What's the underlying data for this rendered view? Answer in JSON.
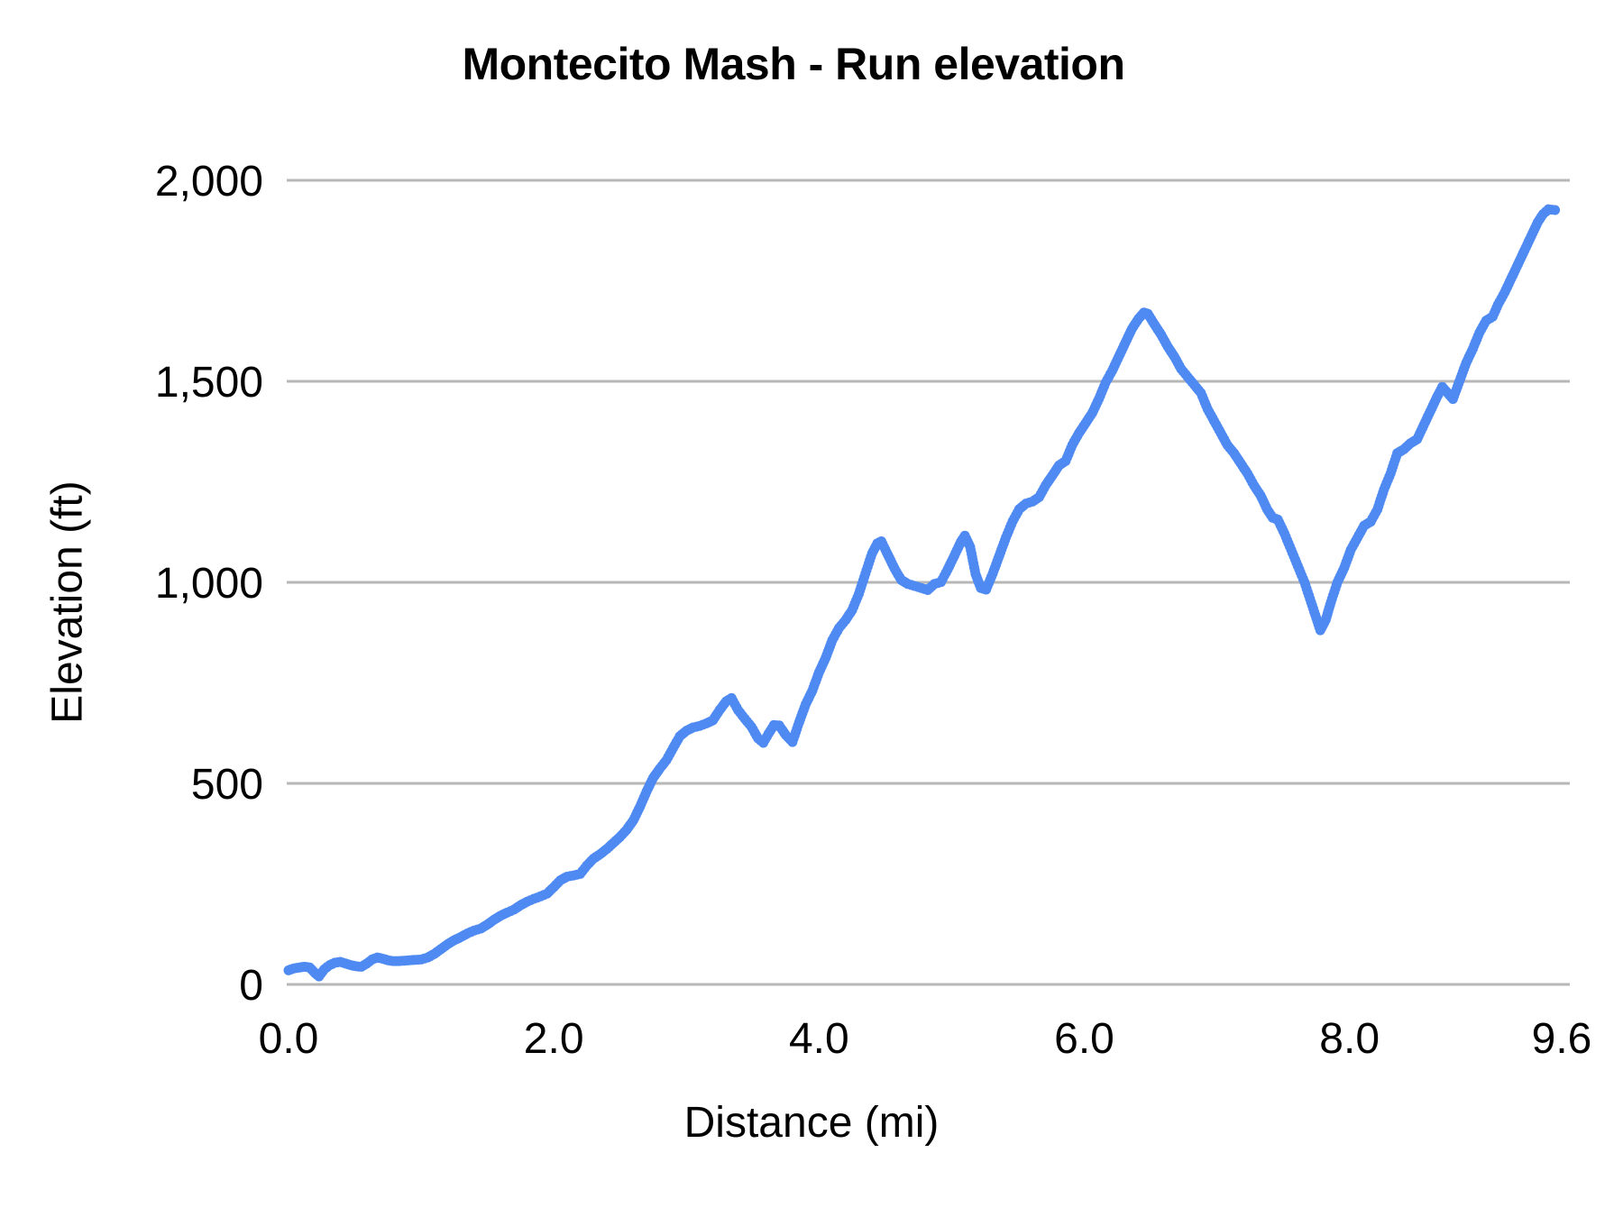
{
  "chart": {
    "title": "Montecito Mash - Run elevation",
    "x_axis": {
      "label": "Distance (mi)"
    },
    "y_axis": {
      "label": "Elevation (ft)"
    },
    "series_color": "#4e8af2",
    "gridline_color": "#b7b7b7"
  },
  "chart_data": {
    "type": "scatter",
    "title": "Montecito Mash - Run elevation",
    "xlabel": "Distance (mi)",
    "ylabel": "Elevation (ft)",
    "xlim": [
      0,
      9.6
    ],
    "ylim": [
      0,
      2000
    ],
    "grid": "horizontal-only",
    "legend": "none",
    "x_ticks": [
      {
        "value": 0.0,
        "label": "0.0"
      },
      {
        "value": 2.0,
        "label": "2.0"
      },
      {
        "value": 4.0,
        "label": "4.0"
      },
      {
        "value": 6.0,
        "label": "6.0"
      },
      {
        "value": 8.0,
        "label": "8.0"
      },
      {
        "value": 9.6,
        "label": "9.6"
      }
    ],
    "y_ticks": [
      {
        "value": 0,
        "label": "0"
      },
      {
        "value": 500,
        "label": "500"
      },
      {
        "value": 1000,
        "label": "1,000"
      },
      {
        "value": 1500,
        "label": "1,500"
      },
      {
        "value": 2000,
        "label": "2,000"
      }
    ],
    "series_name": "Run elevation",
    "points": [
      [
        0.0,
        35
      ],
      [
        0.04,
        40
      ],
      [
        0.08,
        42
      ],
      [
        0.12,
        44
      ],
      [
        0.16,
        42
      ],
      [
        0.2,
        28
      ],
      [
        0.23,
        20
      ],
      [
        0.27,
        38
      ],
      [
        0.31,
        48
      ],
      [
        0.35,
        54
      ],
      [
        0.39,
        56
      ],
      [
        0.43,
        52
      ],
      [
        0.47,
        48
      ],
      [
        0.51,
        45
      ],
      [
        0.55,
        44
      ],
      [
        0.59,
        52
      ],
      [
        0.63,
        62
      ],
      [
        0.67,
        67
      ],
      [
        0.71,
        64
      ],
      [
        0.75,
        60
      ],
      [
        0.79,
        58
      ],
      [
        0.83,
        58
      ],
      [
        0.87,
        59
      ],
      [
        0.91,
        60
      ],
      [
        0.95,
        61
      ],
      [
        1.0,
        62
      ],
      [
        1.05,
        67
      ],
      [
        1.1,
        76
      ],
      [
        1.15,
        88
      ],
      [
        1.2,
        100
      ],
      [
        1.25,
        110
      ],
      [
        1.3,
        118
      ],
      [
        1.35,
        127
      ],
      [
        1.4,
        134
      ],
      [
        1.45,
        139
      ],
      [
        1.5,
        149
      ],
      [
        1.55,
        161
      ],
      [
        1.6,
        171
      ],
      [
        1.65,
        179
      ],
      [
        1.7,
        186
      ],
      [
        1.75,
        197
      ],
      [
        1.8,
        206
      ],
      [
        1.85,
        213
      ],
      [
        1.9,
        219
      ],
      [
        1.95,
        226
      ],
      [
        2.0,
        242
      ],
      [
        2.05,
        259
      ],
      [
        2.1,
        268
      ],
      [
        2.15,
        271
      ],
      [
        2.2,
        275
      ],
      [
        2.25,
        296
      ],
      [
        2.3,
        313
      ],
      [
        2.35,
        324
      ],
      [
        2.4,
        337
      ],
      [
        2.45,
        352
      ],
      [
        2.5,
        367
      ],
      [
        2.55,
        385
      ],
      [
        2.6,
        408
      ],
      [
        2.65,
        442
      ],
      [
        2.7,
        480
      ],
      [
        2.75,
        514
      ],
      [
        2.8,
        537
      ],
      [
        2.85,
        558
      ],
      [
        2.9,
        588
      ],
      [
        2.95,
        617
      ],
      [
        3.0,
        631
      ],
      [
        3.05,
        639
      ],
      [
        3.1,
        643
      ],
      [
        3.15,
        649
      ],
      [
        3.2,
        657
      ],
      [
        3.25,
        682
      ],
      [
        3.3,
        704
      ],
      [
        3.34,
        712
      ],
      [
        3.39,
        682
      ],
      [
        3.44,
        661
      ],
      [
        3.49,
        641
      ],
      [
        3.54,
        612
      ],
      [
        3.58,
        601
      ],
      [
        3.62,
        624
      ],
      [
        3.66,
        645
      ],
      [
        3.7,
        644
      ],
      [
        3.75,
        620
      ],
      [
        3.8,
        603
      ],
      [
        3.85,
        652
      ],
      [
        3.9,
        697
      ],
      [
        3.95,
        731
      ],
      [
        4.0,
        776
      ],
      [
        4.05,
        812
      ],
      [
        4.1,
        856
      ],
      [
        4.15,
        886
      ],
      [
        4.2,
        906
      ],
      [
        4.25,
        931
      ],
      [
        4.3,
        971
      ],
      [
        4.35,
        1022
      ],
      [
        4.4,
        1072
      ],
      [
        4.44,
        1097
      ],
      [
        4.47,
        1102
      ],
      [
        4.52,
        1068
      ],
      [
        4.57,
        1034
      ],
      [
        4.62,
        1006
      ],
      [
        4.67,
        996
      ],
      [
        4.72,
        991
      ],
      [
        4.77,
        986
      ],
      [
        4.82,
        981
      ],
      [
        4.87,
        996
      ],
      [
        4.92,
        1001
      ],
      [
        4.97,
        1032
      ],
      [
        5.02,
        1066
      ],
      [
        5.07,
        1101
      ],
      [
        5.1,
        1116
      ],
      [
        5.14,
        1088
      ],
      [
        5.18,
        1021
      ],
      [
        5.22,
        986
      ],
      [
        5.26,
        982
      ],
      [
        5.31,
        1022
      ],
      [
        5.36,
        1067
      ],
      [
        5.41,
        1112
      ],
      [
        5.46,
        1152
      ],
      [
        5.51,
        1182
      ],
      [
        5.56,
        1196
      ],
      [
        5.61,
        1201
      ],
      [
        5.66,
        1212
      ],
      [
        5.71,
        1242
      ],
      [
        5.76,
        1266
      ],
      [
        5.81,
        1291
      ],
      [
        5.86,
        1302
      ],
      [
        5.91,
        1342
      ],
      [
        5.96,
        1371
      ],
      [
        6.01,
        1396
      ],
      [
        6.06,
        1421
      ],
      [
        6.11,
        1456
      ],
      [
        6.16,
        1496
      ],
      [
        6.21,
        1526
      ],
      [
        6.26,
        1561
      ],
      [
        6.31,
        1596
      ],
      [
        6.36,
        1631
      ],
      [
        6.41,
        1656
      ],
      [
        6.45,
        1671
      ],
      [
        6.48,
        1668
      ],
      [
        6.53,
        1641
      ],
      [
        6.58,
        1616
      ],
      [
        6.63,
        1586
      ],
      [
        6.68,
        1561
      ],
      [
        6.73,
        1531
      ],
      [
        6.78,
        1511
      ],
      [
        6.83,
        1491
      ],
      [
        6.88,
        1471
      ],
      [
        6.93,
        1431
      ],
      [
        6.98,
        1401
      ],
      [
        7.03,
        1371
      ],
      [
        7.08,
        1341
      ],
      [
        7.13,
        1321
      ],
      [
        7.18,
        1296
      ],
      [
        7.23,
        1271
      ],
      [
        7.28,
        1241
      ],
      [
        7.33,
        1216
      ],
      [
        7.38,
        1181
      ],
      [
        7.42,
        1161
      ],
      [
        7.46,
        1156
      ],
      [
        7.51,
        1121
      ],
      [
        7.56,
        1081
      ],
      [
        7.61,
        1041
      ],
      [
        7.66,
        1001
      ],
      [
        7.71,
        951
      ],
      [
        7.75,
        911
      ],
      [
        7.78,
        881
      ],
      [
        7.82,
        906
      ],
      [
        7.86,
        951
      ],
      [
        7.91,
        1001
      ],
      [
        7.96,
        1036
      ],
      [
        8.01,
        1081
      ],
      [
        8.06,
        1111
      ],
      [
        8.11,
        1141
      ],
      [
        8.16,
        1151
      ],
      [
        8.21,
        1181
      ],
      [
        8.26,
        1231
      ],
      [
        8.31,
        1271
      ],
      [
        8.36,
        1321
      ],
      [
        8.41,
        1331
      ],
      [
        8.46,
        1346
      ],
      [
        8.51,
        1356
      ],
      [
        8.56,
        1391
      ],
      [
        8.61,
        1426
      ],
      [
        8.66,
        1461
      ],
      [
        8.7,
        1486
      ],
      [
        8.74,
        1471
      ],
      [
        8.78,
        1456
      ],
      [
        8.83,
        1501
      ],
      [
        8.88,
        1546
      ],
      [
        8.93,
        1581
      ],
      [
        8.98,
        1621
      ],
      [
        9.03,
        1651
      ],
      [
        9.08,
        1661
      ],
      [
        9.12,
        1691
      ],
      [
        9.17,
        1721
      ],
      [
        9.22,
        1756
      ],
      [
        9.27,
        1791
      ],
      [
        9.32,
        1826
      ],
      [
        9.37,
        1861
      ],
      [
        9.42,
        1896
      ],
      [
        9.46,
        1916
      ],
      [
        9.5,
        1928
      ],
      [
        9.55,
        1926
      ]
    ]
  }
}
